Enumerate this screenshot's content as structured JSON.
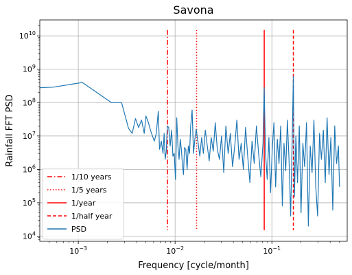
{
  "chart_data": {
    "type": "line",
    "title": "Savona",
    "xlabel": "Frequency [cycle/month]",
    "ylabel": "Rainfall FFT PSD",
    "xscale": "log",
    "yscale": "log",
    "xlim": [
      0.0004,
      0.6
    ],
    "ylim": [
      7000,
      30000000000
    ],
    "grid": true,
    "legend_position": "lower-left",
    "x_ticks": [
      {
        "value": 0.001,
        "base": "10",
        "exp": "−3"
      },
      {
        "value": 0.01,
        "base": "10",
        "exp": "−2"
      },
      {
        "value": 0.1,
        "base": "10",
        "exp": "−1"
      }
    ],
    "y_ticks": [
      {
        "value": 10000,
        "base": "10",
        "exp": "4"
      },
      {
        "value": 100000,
        "base": "10",
        "exp": "5"
      },
      {
        "value": 1000000,
        "base": "10",
        "exp": "6"
      },
      {
        "value": 10000000,
        "base": "10",
        "exp": "7"
      },
      {
        "value": 100000000,
        "base": "10",
        "exp": "8"
      },
      {
        "value": 1000000000,
        "base": "10",
        "exp": "9"
      },
      {
        "value": 10000000000,
        "base": "10",
        "exp": "10"
      }
    ],
    "reference_lines": [
      {
        "name": "1/10 years",
        "x": 0.00833,
        "y_range": [
          15000,
          15000000000
        ],
        "color": "#ff0000",
        "style": "dashdot"
      },
      {
        "name": "1/5 years",
        "x": 0.01667,
        "y_range": [
          15000,
          15000000000
        ],
        "color": "#ff0000",
        "style": "dotted"
      },
      {
        "name": "1/year",
        "x": 0.08333,
        "y_range": [
          15000,
          15000000000
        ],
        "color": "#ff0000",
        "style": "solid"
      },
      {
        "name": "1/half year",
        "x": 0.16667,
        "y_range": [
          15000,
          15000000000
        ],
        "color": "#ff0000",
        "style": "dashed"
      }
    ],
    "series": [
      {
        "name": "PSD",
        "color": "#1f77b4",
        "x": [
          0.0004,
          0.00055,
          0.0011,
          0.0022,
          0.0028,
          0.0033,
          0.0036,
          0.0039,
          0.0042,
          0.0045,
          0.0048,
          0.005,
          0.0053,
          0.0056,
          0.0061,
          0.0064,
          0.0067,
          0.0069,
          0.0072,
          0.0075,
          0.0077,
          0.0079,
          0.0081,
          0.0083,
          0.0086,
          0.0089,
          0.0092,
          0.0095,
          0.0098,
          0.0101,
          0.0104,
          0.0107,
          0.011,
          0.0113,
          0.0116,
          0.0119,
          0.0122,
          0.0125,
          0.0129,
          0.0133,
          0.0137,
          0.0141,
          0.0145,
          0.015,
          0.0155,
          0.016,
          0.0165,
          0.0172,
          0.018,
          0.0188,
          0.0196,
          0.0205,
          0.0215,
          0.0225,
          0.0236,
          0.0248,
          0.026,
          0.0273,
          0.0287,
          0.0302,
          0.0318,
          0.0335,
          0.0353,
          0.0372,
          0.0392,
          0.0413,
          0.0435,
          0.0458,
          0.0482,
          0.0508,
          0.0535,
          0.0563,
          0.0593,
          0.0624,
          0.0657,
          0.0692,
          0.0729,
          0.0768,
          0.0809,
          0.0833,
          0.086,
          0.0894,
          0.0931,
          0.0969,
          0.1009,
          0.105,
          0.1093,
          0.1138,
          0.1185,
          0.1233,
          0.1283,
          0.1335,
          0.1389,
          0.1445,
          0.1503,
          0.1563,
          0.1625,
          0.1667,
          0.171,
          0.177,
          0.184,
          0.192,
          0.2,
          0.209,
          0.218,
          0.228,
          0.238,
          0.249,
          0.26,
          0.272,
          0.284,
          0.297,
          0.311,
          0.325,
          0.34,
          0.356,
          0.372,
          0.389,
          0.407,
          0.426,
          0.446,
          0.466,
          0.487,
          0.5
        ],
        "values": [
          280000000,
          290000000,
          400000000,
          100000000,
          100000000,
          17000000,
          12000000,
          33000000,
          18000000,
          30000000,
          12000000,
          40000000,
          25000000,
          14000000,
          7000000,
          12000000,
          55000000,
          4000000,
          7000000,
          3000000,
          12000000,
          2000000,
          3500000,
          20000000,
          18000000,
          5000000,
          15000000,
          2500000,
          3000000,
          500000,
          35000000,
          5000000,
          2000000,
          8000000,
          4000000,
          1500000,
          700000,
          4500000,
          4000000,
          1000000,
          5000000,
          3000000,
          20000000,
          60000000,
          3000000,
          8000000,
          16000000,
          7000000,
          2500000,
          9000000,
          3000000,
          15000000,
          5000000,
          1800000,
          9000000,
          3500000,
          25000000,
          4000000,
          2000000,
          10000000,
          800000,
          20000000,
          3000000,
          12000000,
          1200000,
          5000000,
          30000000,
          2000000,
          6000000,
          1000000,
          18000000,
          2500000,
          400000,
          7000000,
          1500000,
          20000000,
          3000000,
          600000,
          6000000,
          280000000,
          3000000,
          500000,
          9000000,
          200000,
          4000000,
          25000000,
          300000,
          8000000,
          1500000,
          20000000,
          80000,
          6000000,
          900000,
          30000000,
          2000000,
          40000,
          12000000,
          600000000,
          150000,
          10000000,
          400000,
          20000000,
          50000,
          6000000,
          1200000,
          25000000,
          20000,
          5000000,
          800000,
          30000000,
          300000,
          40000,
          12000000,
          2000000,
          15000000,
          400000,
          35000000,
          700000,
          9000000,
          60000,
          20000000,
          1500000,
          5000000,
          300000
        ]
      }
    ]
  }
}
